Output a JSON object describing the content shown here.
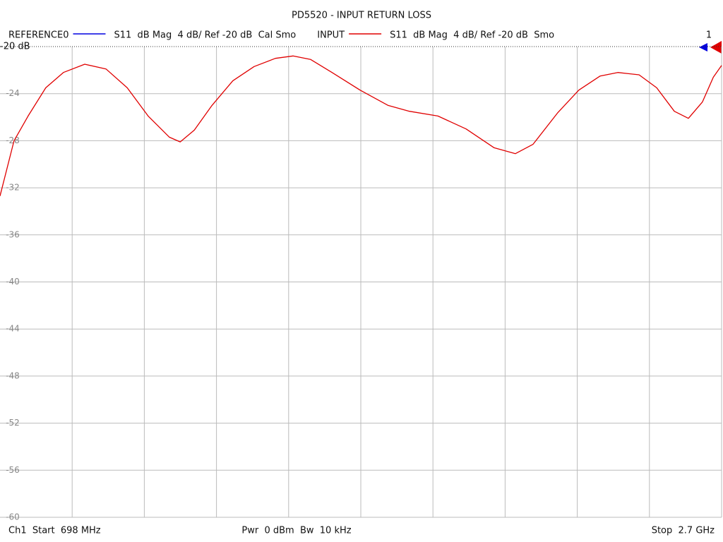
{
  "chart_data": {
    "type": "line",
    "title": "PD5520 - INPUT RETURN LOSS",
    "legend": [
      {
        "name": "REFERENCE0",
        "color": "#0000e0",
        "text": "S11  dB Mag  4 dB/ Ref -20 dB  Cal Smo"
      },
      {
        "name": "INPUT",
        "color": "#e00000",
        "text": "S11  dB Mag  4 dB/ Ref -20 dB  Smo"
      }
    ],
    "marker_label": "1",
    "x": [
      698,
      737,
      776,
      825,
      874,
      933,
      992,
      1051,
      1109,
      1168,
      1198,
      1237,
      1286,
      1344,
      1403,
      1462,
      1511,
      1560,
      1619,
      1697,
      1775,
      1834,
      1913,
      1991,
      2069,
      2128,
      2177,
      2246,
      2304,
      2363,
      2412,
      2471,
      2520,
      2569,
      2608,
      2647,
      2677,
      2700
    ],
    "series": [
      {
        "name": "INPUT",
        "color": "#e00000",
        "values": [
          -32.7,
          -28.0,
          -25.9,
          -23.5,
          -22.2,
          -21.5,
          -21.9,
          -23.5,
          -25.9,
          -27.7,
          -28.1,
          -27.1,
          -25.0,
          -22.9,
          -21.7,
          -21.0,
          -20.8,
          -21.1,
          -22.2,
          -23.7,
          -25.0,
          -25.5,
          -25.9,
          -27.0,
          -28.6,
          -29.1,
          -28.3,
          -25.6,
          -23.7,
          -22.5,
          -22.2,
          -22.4,
          -23.5,
          -25.5,
          -26.1,
          -24.7,
          -22.6,
          -21.6
        ]
      }
    ],
    "xlim": [
      698,
      2700
    ],
    "ylim": [
      -60,
      -20
    ],
    "yticks": [
      {
        "value": -20,
        "label": "-20 dB"
      },
      -24,
      -28,
      -32,
      -36,
      -40,
      -44,
      -48,
      -52,
      -56,
      -60
    ],
    "grid": true,
    "footer": [
      "Ch1  Start  698 MHz",
      "Pwr  0 dBm  Bw  10 kHz",
      "Stop  2.7 GHz"
    ]
  }
}
